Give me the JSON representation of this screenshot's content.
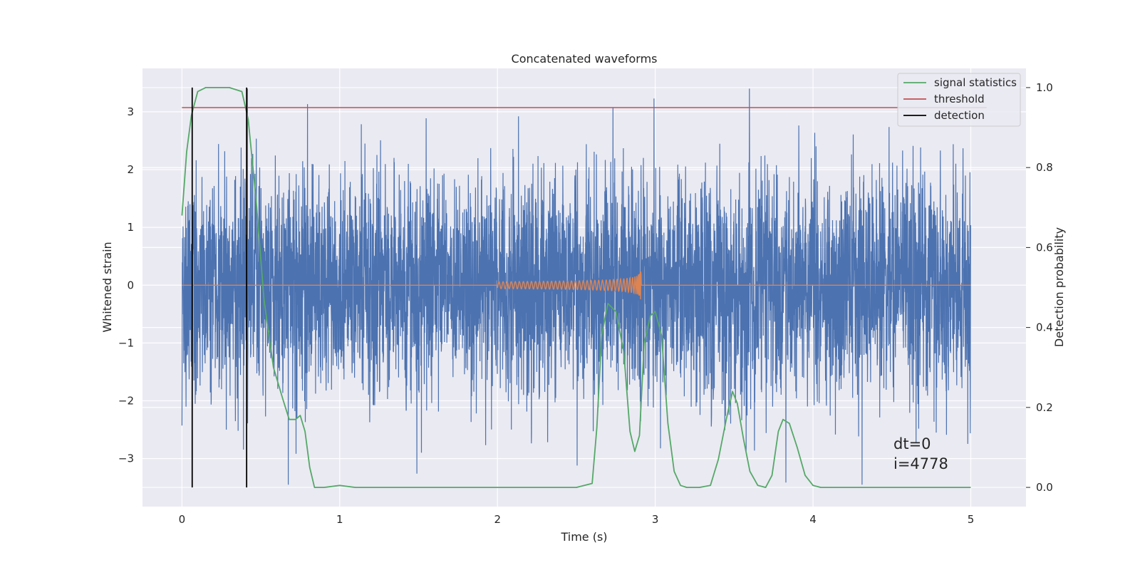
{
  "chart_data": {
    "type": "line",
    "title": "Concatenated waveforms",
    "xlabel": "Time (s)",
    "ylabel": "Whitened strain",
    "y2label": "Detection probability",
    "xlim": [
      -0.25,
      5.35
    ],
    "ylim": [
      -3.83,
      3.75
    ],
    "y2lim": [
      -0.048,
      1.048
    ],
    "xticks": [
      0,
      1,
      2,
      3,
      4,
      5
    ],
    "xtick_labels": [
      "0",
      "1",
      "2",
      "3",
      "4",
      "5"
    ],
    "yticks": [
      -3,
      -2,
      -1,
      0,
      1,
      2,
      3
    ],
    "ytick_labels": [
      "−3",
      "−2",
      "−1",
      "0",
      "1",
      "2",
      "3"
    ],
    "y2ticks": [
      0.0,
      0.2,
      0.4,
      0.6,
      0.8,
      1.0
    ],
    "y2tick_labels": [
      "0.0",
      "0.2",
      "0.4",
      "0.6",
      "0.8",
      "1.0"
    ],
    "grid": true,
    "legend_position": "top-right",
    "colors": {
      "strain": "#4c72b0",
      "template": "#dd8452",
      "signal_statistics": "#55a868",
      "threshold": "#c44e52",
      "detection": "#000000",
      "plot_background": "#eaeaf2",
      "grid": "#ffffff"
    },
    "series": [
      {
        "name": "signal statistics",
        "axis": "right",
        "x": [
          0.0,
          0.03,
          0.06,
          0.1,
          0.15,
          0.2,
          0.3,
          0.38,
          0.42,
          0.47,
          0.52,
          0.58,
          0.64,
          0.68,
          0.72,
          0.75,
          0.78,
          0.81,
          0.84,
          0.9,
          1.0,
          1.1,
          1.5,
          2.0,
          2.5,
          2.6,
          2.63,
          2.66,
          2.7,
          2.75,
          2.8,
          2.84,
          2.87,
          2.9,
          2.93,
          2.97,
          3.0,
          3.04,
          3.08,
          3.12,
          3.16,
          3.2,
          3.28,
          3.35,
          3.4,
          3.45,
          3.49,
          3.52,
          3.56,
          3.6,
          3.65,
          3.7,
          3.74,
          3.78,
          3.81,
          3.85,
          3.9,
          3.95,
          4.0,
          4.05,
          4.1,
          4.2,
          4.5,
          5.0
        ],
        "y": [
          0.68,
          0.84,
          0.93,
          0.99,
          1.0,
          1.0,
          1.0,
          0.99,
          0.92,
          0.72,
          0.47,
          0.3,
          0.22,
          0.17,
          0.17,
          0.18,
          0.14,
          0.05,
          0.0,
          0.0,
          0.005,
          0.0,
          0.0,
          0.0,
          0.0,
          0.01,
          0.15,
          0.38,
          0.46,
          0.44,
          0.34,
          0.14,
          0.09,
          0.13,
          0.36,
          0.43,
          0.44,
          0.38,
          0.16,
          0.04,
          0.005,
          0.0,
          0.0,
          0.005,
          0.07,
          0.17,
          0.24,
          0.21,
          0.12,
          0.04,
          0.005,
          0.0,
          0.03,
          0.14,
          0.17,
          0.16,
          0.1,
          0.03,
          0.005,
          0.0,
          0.0,
          0.0,
          0.0,
          0.0
        ]
      },
      {
        "name": "threshold",
        "axis": "right",
        "x": [
          0.0,
          5.1
        ],
        "y": [
          0.95,
          0.95
        ]
      },
      {
        "name": "detection",
        "axis": "right",
        "x": [
          0.065,
          0.41
        ],
        "y": [
          0.0,
          1.0
        ]
      }
    ],
    "annotations": [
      "dt=0",
      "i=4778"
    ]
  }
}
